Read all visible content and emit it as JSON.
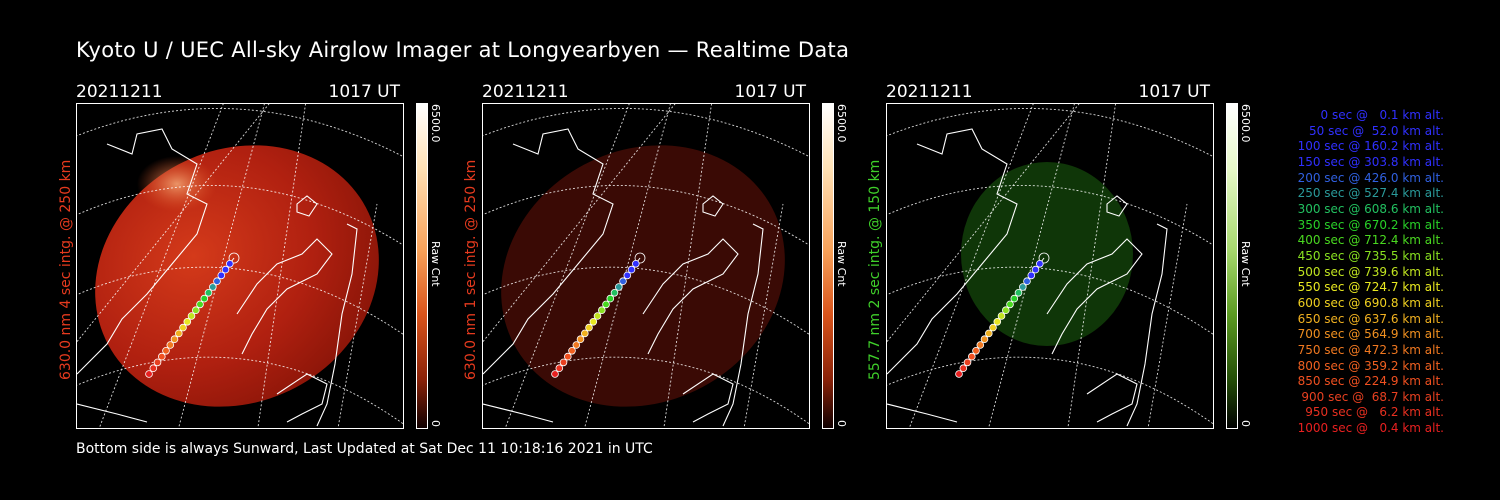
{
  "title": "Kyoto U / UEC All-sky Airglow Imager at Longyearbyen — Realtime Data",
  "footer": "Bottom side is always Sunward, Last Updated at Sat Dec 11 10:18:16 2021 in UTC",
  "panels": [
    {
      "date": "20211211",
      "time": "1017 UT",
      "side_label": "630.0 nm 4 sec intg. @ 250 km",
      "label_color": "#e63a1e",
      "colorbar_max": "6500.0",
      "colorbar_min": "0",
      "colorbar_title": "Raw Cnt"
    },
    {
      "date": "20211211",
      "time": "1017 UT",
      "side_label": "630.0 nm 1 sec intg. @ 250 km",
      "label_color": "#e63a1e",
      "colorbar_max": "6500.0",
      "colorbar_min": "0",
      "colorbar_title": "Raw Cnt"
    },
    {
      "date": "20211211",
      "time": "1017 UT",
      "side_label": "557.7 nm 2 sec intg. @ 150 km",
      "label_color": "#3fcf2a",
      "colorbar_max": "6500.0",
      "colorbar_min": "0",
      "colorbar_title": "Raw Cnt"
    }
  ],
  "trajectory_legend": [
    {
      "text": "0 sec @   0.1 km alt.",
      "color": "#3030ff"
    },
    {
      "text": "50 sec @  52.0 km alt.",
      "color": "#3030ff"
    },
    {
      "text": "100 sec @ 160.2 km alt.",
      "color": "#3030ff"
    },
    {
      "text": "150 sec @ 303.8 km alt.",
      "color": "#3030ff"
    },
    {
      "text": "200 sec @ 426.0 km alt.",
      "color": "#3060e0"
    },
    {
      "text": "250 sec @ 527.4 km alt.",
      "color": "#2a9a9a"
    },
    {
      "text": "300 sec @ 608.6 km alt.",
      "color": "#22c060"
    },
    {
      "text": "350 sec @ 670.2 km alt.",
      "color": "#28d028"
    },
    {
      "text": "400 sec @ 712.4 km alt.",
      "color": "#4ad820"
    },
    {
      "text": "450 sec @ 735.5 km alt.",
      "color": "#88e020"
    },
    {
      "text": "500 sec @ 739.6 km alt.",
      "color": "#c0e420"
    },
    {
      "text": "550 sec @ 724.7 km alt.",
      "color": "#e8e820"
    },
    {
      "text": "600 sec @ 690.8 km alt.",
      "color": "#f0d020"
    },
    {
      "text": "650 sec @ 637.6 km alt.",
      "color": "#f0b020"
    },
    {
      "text": "700 sec @ 564.9 km alt.",
      "color": "#f09020"
    },
    {
      "text": "750 sec @ 472.3 km alt.",
      "color": "#f07820"
    },
    {
      "text": "800 sec @ 359.2 km alt.",
      "color": "#f06020"
    },
    {
      "text": "850 sec @ 224.9 km alt.",
      "color": "#f05020"
    },
    {
      "text": "900 sec @  68.7 km alt.",
      "color": "#e84020"
    },
    {
      "text": "950 sec @   6.2 km alt.",
      "color": "#e83020"
    },
    {
      "text": "1000 sec @   0.4 km alt.",
      "color": "#e82020"
    }
  ],
  "colors": {
    "red_glow": "#b42010",
    "dim_red_glow": "#3a0a05",
    "green_glow": "#103a08"
  }
}
